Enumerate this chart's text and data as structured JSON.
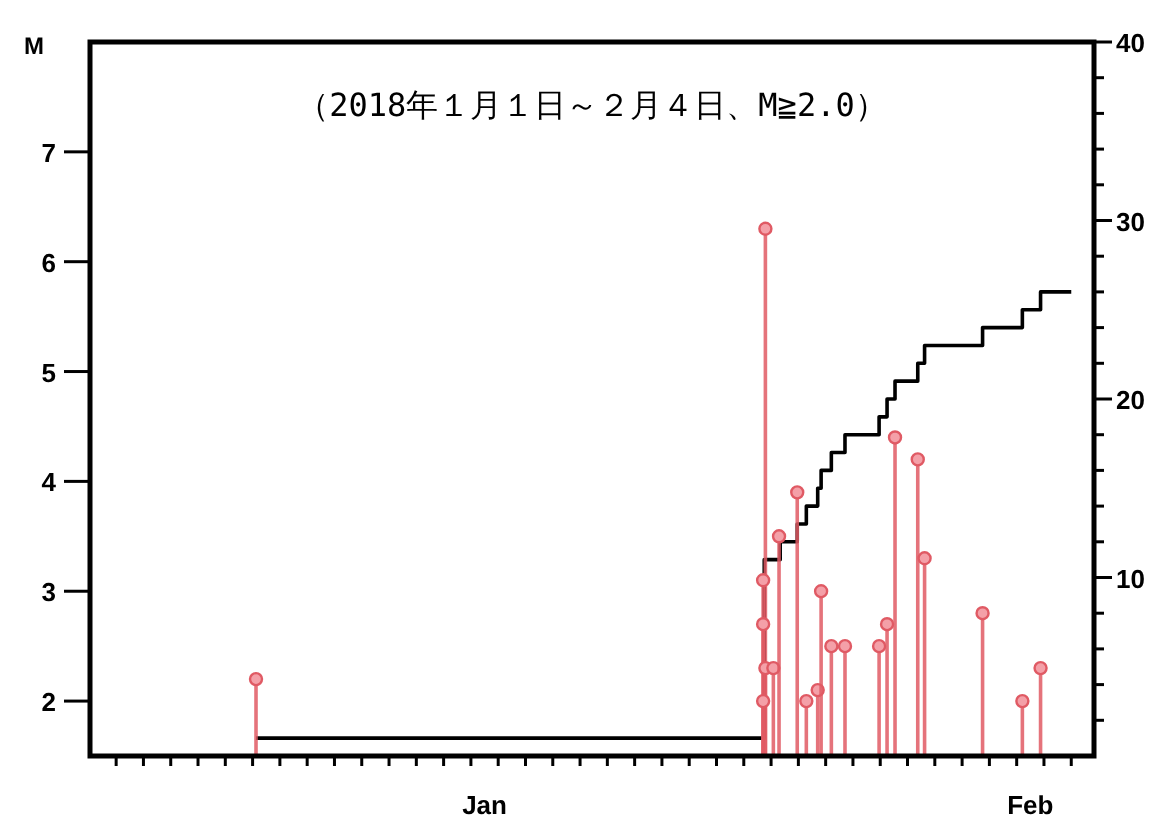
{
  "chart_data": {
    "type": "lollipop",
    "title": "（2018年１月１日～２月４日、M≧2.0）",
    "ylabel": "M",
    "xlim": [
      "2017-12-31T01:00",
      "2018-02-05T20:00"
    ],
    "ylim": [
      1.5,
      8
    ],
    "yticks": [
      2,
      3,
      4,
      5,
      6,
      7
    ],
    "y2lim": [
      0,
      40
    ],
    "y2ticks": [
      {
        "value": 2,
        "label": null
      },
      {
        "value": 4,
        "label": null
      },
      {
        "value": 6,
        "label": null
      },
      {
        "value": 8,
        "label": null
      },
      10,
      {
        "value": 12,
        "label": null
      },
      {
        "value": 14,
        "label": null
      },
      {
        "value": 16,
        "label": null
      },
      {
        "value": 18,
        "label": null
      },
      20,
      {
        "value": 22,
        "label": null
      },
      {
        "value": 24,
        "label": null
      },
      {
        "value": 26,
        "label": null
      },
      {
        "value": 28,
        "label": null
      },
      30,
      {
        "value": 32,
        "label": null
      },
      {
        "value": 34,
        "label": null
      },
      {
        "value": 36,
        "label": null
      },
      {
        "value": 38,
        "label": null
      },
      40
    ],
    "xticks": [
      {
        "value": "2018-01-01",
        "label": null
      },
      {
        "value": "2018-01-02",
        "label": null
      },
      {
        "value": "2018-01-03",
        "label": null
      },
      {
        "value": "2018-01-04",
        "label": null
      },
      {
        "value": "2018-01-05",
        "label": null
      },
      {
        "value": "2018-01-06",
        "label": null
      },
      {
        "value": "2018-01-07",
        "label": null
      },
      {
        "value": "2018-01-08",
        "label": null
      },
      {
        "value": "2018-01-09",
        "label": null
      },
      {
        "value": "2018-01-10",
        "label": null
      },
      {
        "value": "2018-01-11",
        "label": null
      },
      {
        "value": "2018-01-12",
        "label": null
      },
      {
        "value": "2018-01-13",
        "label": null
      },
      {
        "value": "2018-01-14",
        "label": null
      },
      {
        "value": "2018-01-14T12:00",
        "label": "Jan"
      },
      {
        "value": "2018-01-15",
        "label": null
      },
      {
        "value": "2018-01-16",
        "label": null
      },
      {
        "value": "2018-01-17",
        "label": null
      },
      {
        "value": "2018-01-18",
        "label": null
      },
      {
        "value": "2018-01-19",
        "label": null
      },
      {
        "value": "2018-01-20",
        "label": null
      },
      {
        "value": "2018-01-21",
        "label": null
      },
      {
        "value": "2018-01-22",
        "label": null
      },
      {
        "value": "2018-01-23",
        "label": null
      },
      {
        "value": "2018-01-24",
        "label": null
      },
      {
        "value": "2018-01-25",
        "label": null
      },
      {
        "value": "2018-01-26",
        "label": null
      },
      {
        "value": "2018-01-27",
        "label": null
      },
      {
        "value": "2018-01-28",
        "label": null
      },
      {
        "value": "2018-01-29",
        "label": null
      },
      {
        "value": "2018-01-30",
        "label": null
      },
      {
        "value": "2018-01-31",
        "label": null
      },
      {
        "value": "2018-02-01",
        "label": null
      },
      {
        "value": "2018-02-02",
        "label": null
      },
      {
        "value": "2018-02-03",
        "label": null
      },
      {
        "value": "2018-02-03T12:00",
        "label": "Feb"
      },
      {
        "value": "2018-02-04",
        "label": null
      },
      {
        "value": "2018-02-05",
        "label": null
      }
    ],
    "series": [
      {
        "type": "lollipop",
        "color": "#e05a64",
        "marker": "circle",
        "x": [
          "2018-01-06T03:00",
          "2018-01-24T19:00",
          "2018-01-24T17:00",
          "2018-01-24T17:00",
          "2018-01-24T19:00",
          "2018-01-24T17:00",
          "2018-01-25T02:00",
          "2018-01-25T07:00",
          "2018-01-25T23:00",
          "2018-01-26T07:00",
          "2018-01-26T17:00",
          "2018-01-26T20:00",
          "2018-01-27T05:00",
          "2018-01-27T17:00",
          "2018-01-28T23:00",
          "2018-01-29T06:00",
          "2018-01-29T13:00",
          "2018-01-30T09:00",
          "2018-01-30T15:00",
          "2018-02-01T18:00",
          "2018-02-03T05:00",
          "2018-02-03T21:00"
        ],
        "values": [
          2.2,
          6.3,
          3.1,
          2.7,
          2.3,
          2.0,
          2.3,
          3.5,
          3.9,
          2.0,
          2.1,
          3.0,
          2.5,
          2.5,
          2.5,
          2.7,
          4.4,
          4.2,
          3.3,
          2.8,
          2.0,
          2.3
        ]
      },
      {
        "type": "step",
        "color": "#000000",
        "axis": "y2",
        "x": [
          "2018-01-06T03:00",
          "2018-01-24T18:00",
          "2018-01-25T08:00",
          "2018-01-25T23:00",
          "2018-01-26T07:00",
          "2018-01-26T17:00",
          "2018-01-26T20:00",
          "2018-01-27T05:00",
          "2018-01-27T17:00",
          "2018-01-28T23:00",
          "2018-01-29T06:00",
          "2018-01-29T13:00",
          "2018-01-30T09:00",
          "2018-01-30T15:00",
          "2018-02-01T18:00",
          "2018-02-03T05:00",
          "2018-02-03T21:00",
          "2018-02-05T00:00"
        ],
        "values": [
          1,
          11,
          12,
          13,
          14,
          15,
          16,
          17,
          18,
          19,
          20,
          21,
          22,
          23,
          24,
          25,
          26,
          26
        ]
      }
    ]
  }
}
